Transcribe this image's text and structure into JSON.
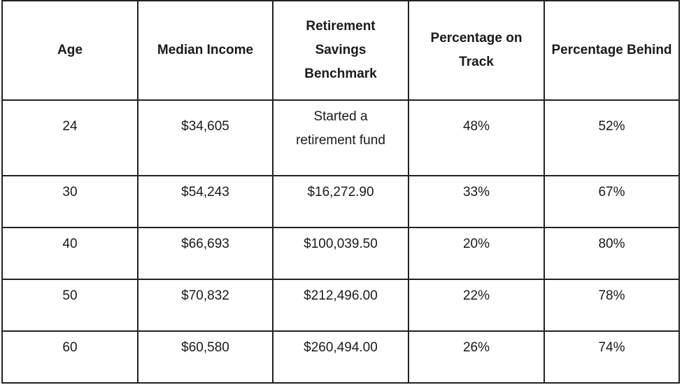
{
  "table": {
    "headers": [
      "Age",
      "Median Income",
      "Retirement Savings Benchmark",
      "Percentage on Track",
      "Percentage Behind"
    ],
    "rows": [
      {
        "age": "24",
        "median_income": "$34,605",
        "benchmark": "Started a retirement fund",
        "on_track": "48%",
        "behind": "52%"
      },
      {
        "age": "30",
        "median_income": "$54,243",
        "benchmark": "$16,272.90",
        "on_track": "33%",
        "behind": "67%"
      },
      {
        "age": "40",
        "median_income": "$66,693",
        "benchmark": "$100,039.50",
        "on_track": "20%",
        "behind": "80%"
      },
      {
        "age": "50",
        "median_income": "$70,832",
        "benchmark": "$212,496.00",
        "on_track": "22%",
        "behind": "78%"
      },
      {
        "age": "60",
        "median_income": "$60,580",
        "benchmark": "$260,494.00",
        "on_track": "26%",
        "behind": "74%"
      }
    ]
  }
}
